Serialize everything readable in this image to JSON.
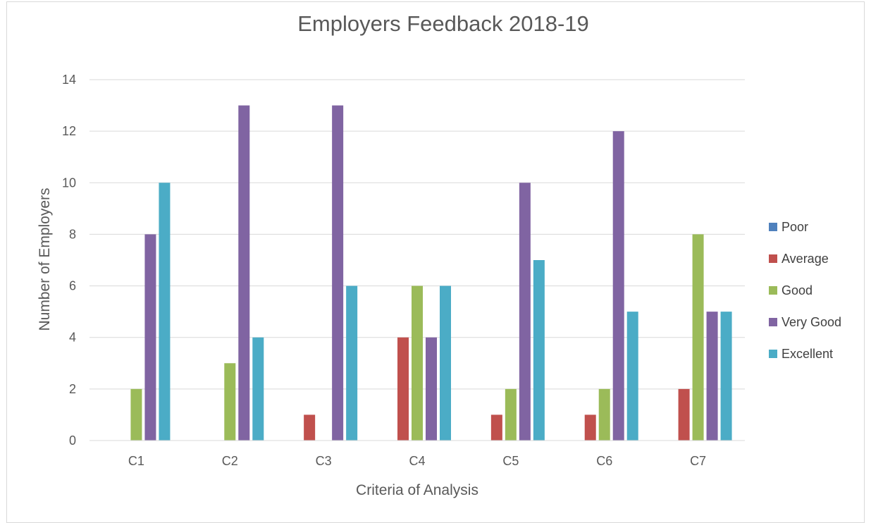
{
  "chart_data": {
    "type": "bar",
    "title": "Employers Feedback 2018-19",
    "xlabel": "Criteria of Analysis",
    "ylabel": "Number of Employers",
    "categories": [
      "C1",
      "C2",
      "C3",
      "C4",
      "C5",
      "C6",
      "C7"
    ],
    "ylim": [
      0,
      14
    ],
    "yticks": [
      0,
      2,
      4,
      6,
      8,
      10,
      12,
      14
    ],
    "grid": true,
    "legend_position": "right",
    "series": [
      {
        "name": "Poor",
        "color": "#4f81bd",
        "values": [
          0,
          0,
          0,
          0,
          0,
          0,
          0
        ]
      },
      {
        "name": "Average",
        "color": "#c0504d",
        "values": [
          0,
          0,
          1,
          4,
          1,
          1,
          2
        ]
      },
      {
        "name": "Good",
        "color": "#9bbb59",
        "values": [
          2,
          3,
          0,
          6,
          2,
          2,
          8
        ]
      },
      {
        "name": "Very Good",
        "color": "#8064a2",
        "values": [
          8,
          13,
          13,
          4,
          10,
          12,
          5
        ]
      },
      {
        "name": "Excellent",
        "color": "#4bacc6",
        "values": [
          10,
          4,
          6,
          6,
          7,
          5,
          5
        ]
      }
    ]
  }
}
